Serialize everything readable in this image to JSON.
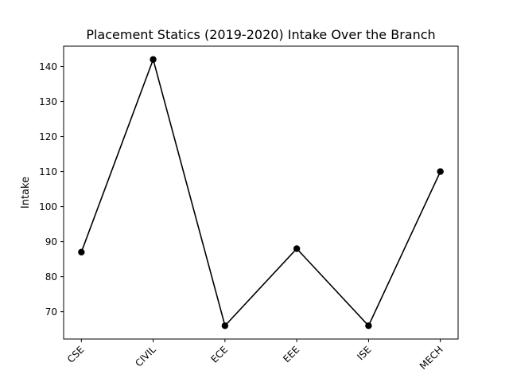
{
  "chart_data": {
    "type": "line",
    "title": "Placement Statics (2019-2020) Intake Over the Branch",
    "xlabel": "",
    "ylabel": "Intake",
    "categories": [
      "CSE",
      "CIVIL",
      "ECE",
      "EEE",
      "ISE",
      "MECH"
    ],
    "series": [
      {
        "values": [
          87,
          142,
          66,
          88,
          66,
          110
        ]
      }
    ],
    "ylim": [
      62.2,
      145.8
    ],
    "yticks": [
      70,
      80,
      90,
      100,
      110,
      120,
      130,
      140
    ],
    "grid": false,
    "line_color": "#000000",
    "marker": "circle"
  }
}
